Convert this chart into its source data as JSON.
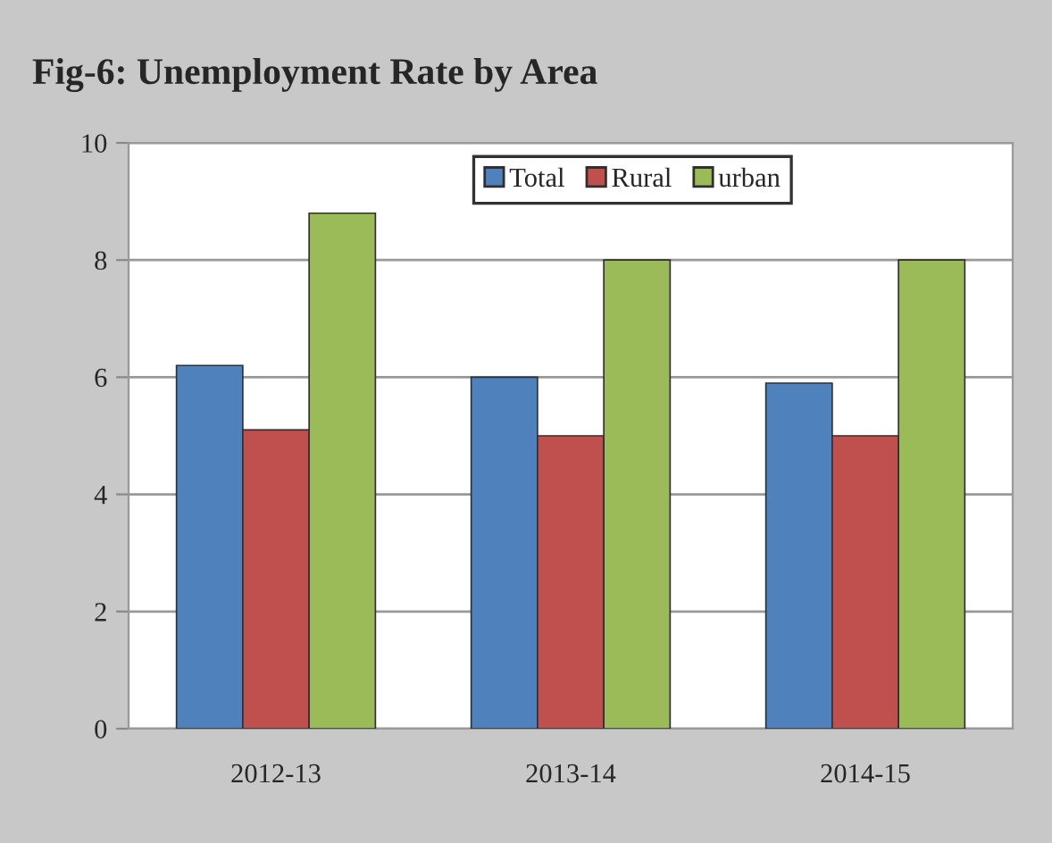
{
  "chart_data": {
    "type": "bar",
    "title": "Fig-6: Unemployment Rate by Area",
    "categories": [
      "2012-13",
      "2013-14",
      "2014-15"
    ],
    "series": [
      {
        "name": "Total",
        "color": "#4f81bd",
        "values": [
          6.2,
          6.0,
          5.9
        ]
      },
      {
        "name": "Rural",
        "color": "#c0504d",
        "values": [
          5.1,
          5.0,
          5.0
        ]
      },
      {
        "name": "urban",
        "color": "#9bbb59",
        "values": [
          8.8,
          8.0,
          8.0
        ]
      }
    ],
    "ylim": [
      0,
      10
    ],
    "yticks": [
      0,
      2,
      4,
      6,
      8,
      10
    ],
    "grid": "y",
    "legend": "top"
  }
}
